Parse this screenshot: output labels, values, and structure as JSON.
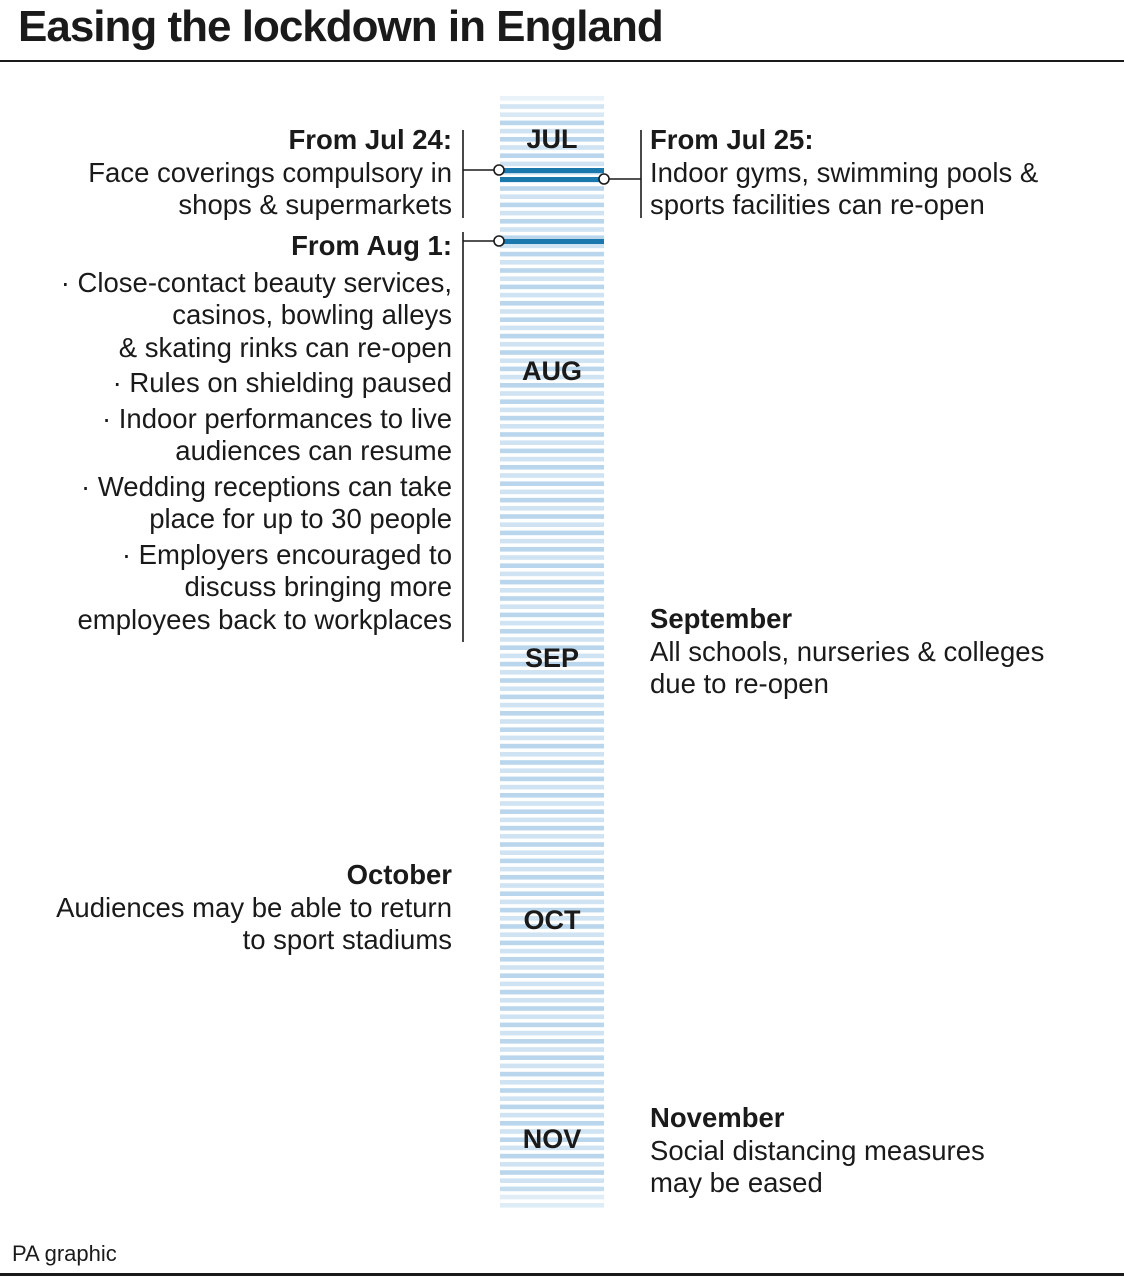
{
  "title": "Easing the lockdown in England",
  "credit": "PA graphic",
  "colors": {
    "stripe": "#cfe3f2",
    "stripe_alt": "#b9d6ec",
    "marker": "#1a78ad",
    "rule": "#1a1a1a",
    "text": "#1a1a1a"
  },
  "months": [
    "JUL",
    "AUG",
    "SEP",
    "OCT",
    "NOV"
  ],
  "events": {
    "jul24": {
      "heading": "From Jul 24:",
      "lines": [
        "Face coverings compulsory in",
        "shops & supermarkets"
      ]
    },
    "jul25": {
      "heading": "From Jul 25:",
      "lines": [
        "Indoor gyms, swimming pools &",
        "sports facilities can re-open"
      ]
    },
    "aug1": {
      "heading": "From Aug 1:",
      "bullets": [
        [
          "· Close-contact beauty services,",
          "casinos, bowling alleys",
          "& skating rinks can re-open"
        ],
        [
          "· Rules on shielding paused"
        ],
        [
          "· Indoor performances to live",
          "audiences can resume"
        ],
        [
          "· Wedding receptions can take",
          "place for up to 30 people"
        ],
        [
          "· Employers encouraged to",
          "discuss bringing more",
          "employees back to workplaces"
        ]
      ]
    },
    "september": {
      "heading": "September",
      "lines": [
        "All schools, nurseries & colleges",
        "due to re-open"
      ]
    },
    "october": {
      "heading": "October",
      "lines": [
        "Audiences may be able to return",
        "to sport stadiums"
      ]
    },
    "november": {
      "heading": "November",
      "lines": [
        "Social distancing measures",
        "may be eased"
      ]
    }
  }
}
